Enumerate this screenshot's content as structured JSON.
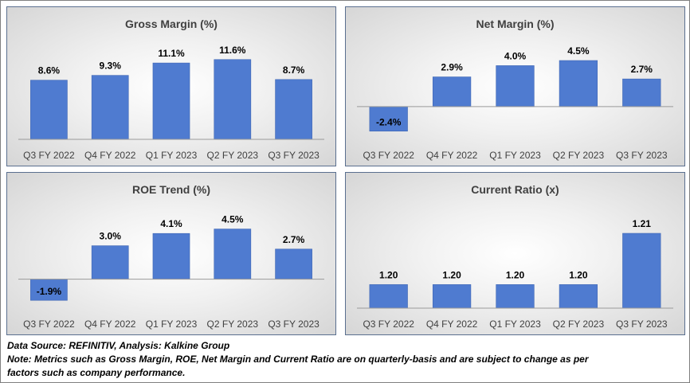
{
  "colors": {
    "bar": "#4f7bd0",
    "bar_edge": "#3f66b3",
    "axis": "#9a9a9a"
  },
  "chart_data": [
    {
      "type": "bar",
      "title": "Gross Margin (%)",
      "categories": [
        "Q3 FY 2022",
        "Q4 FY 2022",
        "Q1 FY 2023",
        "Q2 FY 2023",
        "Q3 FY 2023"
      ],
      "values": [
        8.6,
        9.3,
        11.1,
        11.6,
        8.7
      ],
      "labels": [
        "8.6%",
        "9.3%",
        "11.1%",
        "11.6%",
        "8.7%"
      ],
      "ylim": [
        0,
        12.5
      ],
      "grid": false
    },
    {
      "type": "bar",
      "title": "Net Margin (%)",
      "categories": [
        "Q3 FY 2022",
        "Q4 FY 2022",
        "Q1 FY 2023",
        "Q2 FY 2023",
        "Q3 FY 2023"
      ],
      "values": [
        -2.4,
        2.9,
        4.0,
        4.5,
        2.7
      ],
      "labels": [
        "-2.4%",
        "2.9%",
        "4.0%",
        "4.5%",
        "2.7%"
      ],
      "ylim": [
        -3.2,
        5.2
      ],
      "grid": false
    },
    {
      "type": "bar",
      "title": "ROE Trend (%)",
      "categories": [
        "Q3 FY 2022",
        "Q4 FY 2022",
        "Q1 FY 2023",
        "Q2 FY 2023",
        "Q3 FY 2023"
      ],
      "values": [
        -1.9,
        3.0,
        4.1,
        4.5,
        2.7
      ],
      "labels": [
        "-1.9%",
        "3.0%",
        "4.1%",
        "4.5%",
        "2.7%"
      ],
      "ylim": [
        -2.6,
        5.4
      ],
      "grid": false
    },
    {
      "type": "bar",
      "title": "Current Ratio (x)",
      "categories": [
        "Q3 FY 2022",
        "Q4 FY 2022",
        "Q1 FY 2023",
        "Q2 FY 2023",
        "Q3 FY 2023"
      ],
      "values": [
        1.2,
        1.2,
        1.2,
        1.2,
        1.21
      ],
      "labels": [
        "1.20",
        "1.20",
        "1.20",
        "1.20",
        "1.21"
      ],
      "ylim": [
        1.1954,
        1.2128
      ],
      "grid": false
    }
  ],
  "footer": {
    "source": "Data Source: REFINITIV, Analysis: Kalkine Group",
    "note_line1": "Note: Metrics such as Gross Margin, ROE, Net Margin and Current Ratio are on quarterly-basis and are subject to change as per",
    "note_line2": "factors such as company performance."
  }
}
